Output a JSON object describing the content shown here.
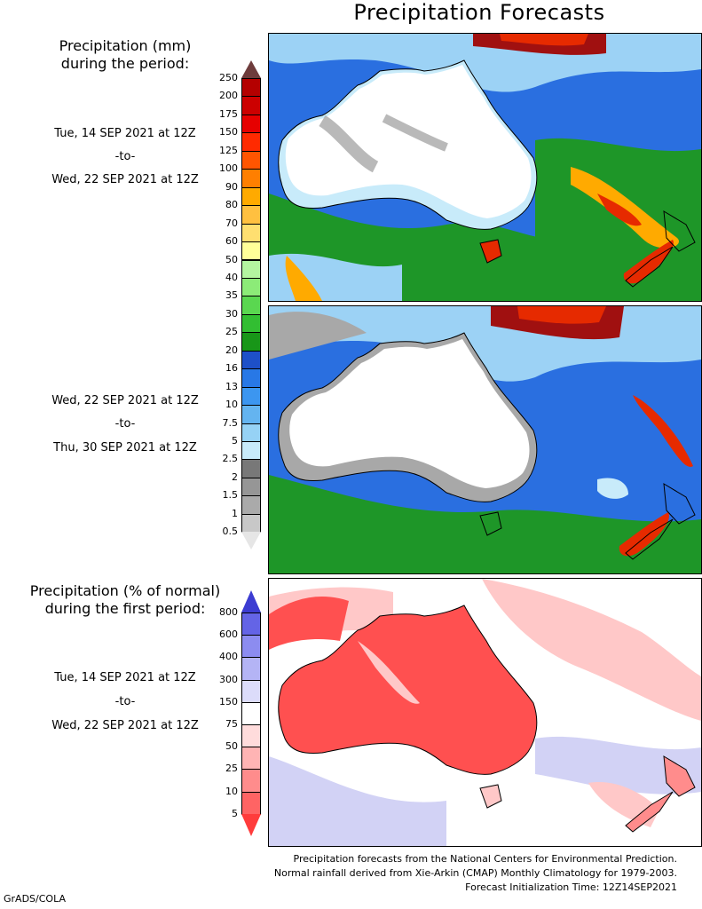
{
  "title": "Precipitation Forecasts",
  "legend1": {
    "title_line1": "Precipitation (mm)",
    "title_line2": "during the period:",
    "levels": [
      "250",
      "200",
      "175",
      "150",
      "125",
      "100",
      "90",
      "80",
      "70",
      "60",
      "50",
      "40",
      "35",
      "30",
      "25",
      "20",
      "16",
      "13",
      "10",
      "7.5",
      "5",
      "2.5",
      "2",
      "1.5",
      "1",
      "0.5"
    ],
    "colors": [
      "#8c1a1a",
      "#b40000",
      "#cc0000",
      "#e60000",
      "#ff2a00",
      "#ff5500",
      "#ff7f00",
      "#ffaa00",
      "#ffc040",
      "#ffdf70",
      "#ffff99",
      "#b4f5a0",
      "#8ceb78",
      "#5ad750",
      "#32be32",
      "#189618",
      "#1e50c8",
      "#2878e6",
      "#3c96f0",
      "#64b4f0",
      "#96d2f5",
      "#c8ebfa",
      "#787878",
      "#969696",
      "#aaaaaa",
      "#c8c8c8",
      "#e6e6e6"
    ],
    "top_arrow_color": "#6e3c3c"
  },
  "period1": {
    "start": "Tue, 14 SEP 2021 at 12Z",
    "sep": "-to-",
    "end": "Wed, 22 SEP 2021 at 12Z"
  },
  "period2": {
    "start": "Wed, 22 SEP 2021 at 12Z",
    "sep": "-to-",
    "end": "Thu, 30 SEP 2021 at 12Z"
  },
  "legend2": {
    "title_line1": "Precipitation (% of normal)",
    "title_line2": "during the first period:",
    "levels": [
      "800",
      "600",
      "400",
      "300",
      "150",
      "75",
      "50",
      "25",
      "10",
      "5"
    ],
    "colors": [
      "#3c3cd2",
      "#6464e6",
      "#8c8cf0",
      "#b4b4f5",
      "#dcdcfa",
      "#ffffff",
      "#ffdcdc",
      "#ffb4b4",
      "#ff8c8c",
      "#ff6464",
      "#ff3c3c"
    ]
  },
  "period3": {
    "start": "Tue, 14 SEP 2021 at 12Z",
    "sep": "-to-",
    "end": "Wed, 22 SEP 2021 at 12Z"
  },
  "footer": {
    "line1": "Precipitation forecasts from the National Centers for Environmental Prediction.",
    "line2": "Normal rainfall derived from Xie-Arkin (CMAP) Monthly Climatology for 1979-2003.",
    "line3": "Forecast Initialization Time: 12Z14SEP2021"
  },
  "credit": "GrADS/COLA",
  "map_colors": {
    "land_dry": "#ffffff",
    "ocean_green": "#1e9628",
    "ocean_blue": "#2a6fe0",
    "light_blue": "#9cd2f5",
    "pale_blue": "#c8ebfa",
    "gray": "#a8a8a8",
    "red": "#e62a00",
    "orange": "#ffaa00",
    "dark_red": "#a01010",
    "anom_red": "#ff5050",
    "anom_pink": "#ffc8c8",
    "anom_blue": "#d2d2f5"
  }
}
